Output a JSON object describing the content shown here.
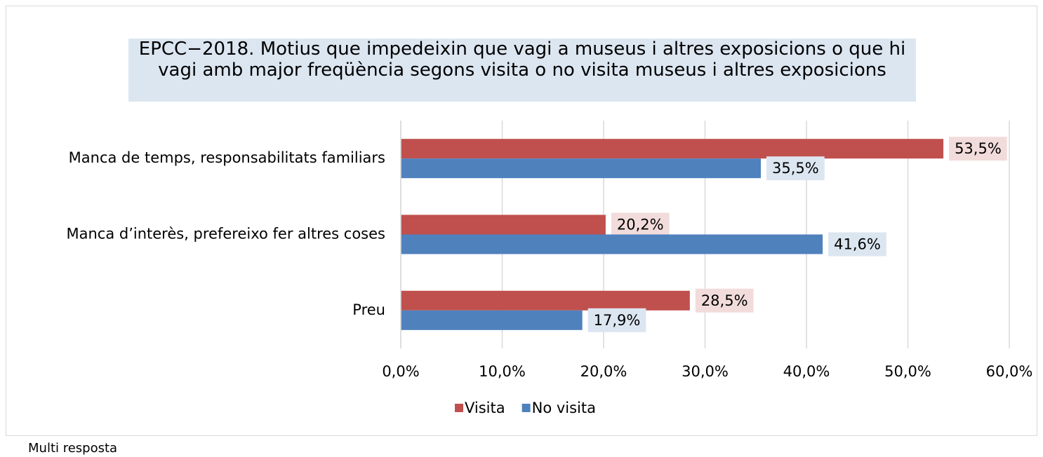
{
  "chart_data": {
    "type": "hbar",
    "title": "EPCC−2018. Motius que impedeixin que vagi a museus i altres exposicions o que hi vagi amb major freqüència segons visita o no visita museus i altres exposicions",
    "categories": [
      "Manca de temps, responsabilitats familiars",
      "Manca d’interès, prefereixo fer altres coses",
      "Preu"
    ],
    "series": [
      {
        "name": "Visita",
        "color": "#c0504d",
        "label_bg": "#f2dcdb",
        "values": [
          53.5,
          20.2,
          28.5
        ],
        "value_labels": [
          "53,5%",
          "20,2%",
          "28,5%"
        ]
      },
      {
        "name": "No visita",
        "color": "#4f81bd",
        "label_bg": "#dce6f1",
        "values": [
          35.5,
          41.6,
          17.9
        ],
        "value_labels": [
          "35,5%",
          "41,6%",
          "17,9%"
        ]
      }
    ],
    "xlim": [
      0,
      60
    ],
    "xticks": [
      {
        "value": 0,
        "label": "0,0%"
      },
      {
        "value": 10,
        "label": "10,0%"
      },
      {
        "value": 20,
        "label": "20,0%"
      },
      {
        "value": 30,
        "label": "30,0%"
      },
      {
        "value": 40,
        "label": "40,0%"
      },
      {
        "value": 50,
        "label": "50,0%"
      },
      {
        "value": 60,
        "label": "60,0%"
      }
    ],
    "grid": true,
    "legend": "bottom",
    "note": "Multi resposta"
  }
}
